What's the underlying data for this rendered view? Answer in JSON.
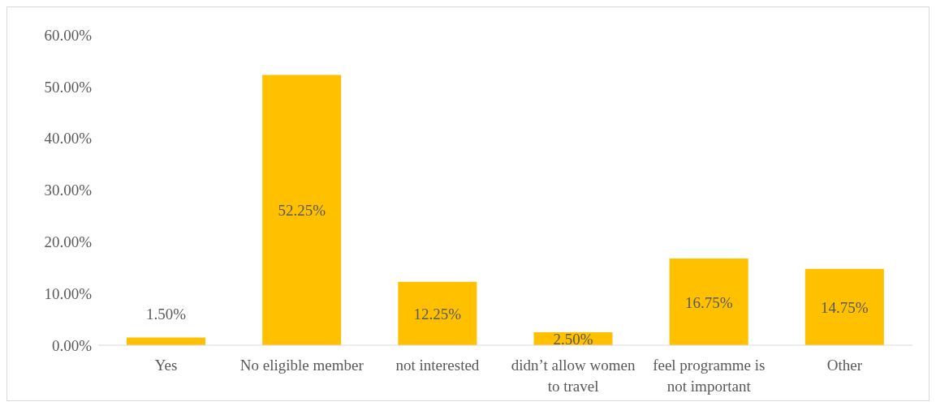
{
  "chart_data": {
    "type": "bar",
    "categories": [
      "Yes",
      "No eligible member",
      "not interested",
      "didn’t allow women to travel",
      "feel programme is not important",
      "Other"
    ],
    "values": [
      1.5,
      52.25,
      12.25,
      2.5,
      16.75,
      14.75
    ],
    "value_labels": [
      "1.50%",
      "52.25%",
      "12.25%",
      "2.50%",
      "16.75%",
      "14.75%"
    ],
    "color": "#ffc000",
    "ylim": [
      0,
      60
    ],
    "yticks": [
      {
        "value": 0,
        "label": "0.00%"
      },
      {
        "value": 10,
        "label": "10.00%"
      },
      {
        "value": 20,
        "label": "20.00%"
      },
      {
        "value": 30,
        "label": "30.00%"
      },
      {
        "value": 40,
        "label": "40.00%"
      },
      {
        "value": 50,
        "label": "50.00%"
      },
      {
        "value": 60,
        "label": "60.00%"
      }
    ],
    "grid": false,
    "legend": false
  }
}
